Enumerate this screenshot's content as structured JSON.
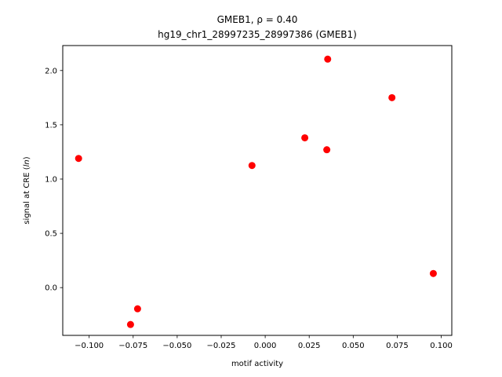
{
  "chart_data": {
    "type": "scatter",
    "title_line1": "GMEB1, ρ = 0.40",
    "title_line2": "hg19_chr1_28997235_28997386 (GMEB1)",
    "xlabel": "motif activity",
    "ylabel_prefix": "signal at CRE (",
    "ylabel_italic": "ln",
    "ylabel_suffix": ")",
    "xlim": [
      -0.115,
      0.106
    ],
    "ylim": [
      -0.44,
      2.23
    ],
    "xticks": [
      -0.1,
      -0.075,
      -0.05,
      -0.025,
      0.0,
      0.025,
      0.05,
      0.075,
      0.1
    ],
    "xtick_labels": [
      "−0.100",
      "−0.075",
      "−0.050",
      "−0.025",
      "0.000",
      "0.025",
      "0.050",
      "0.075",
      "0.100"
    ],
    "yticks": [
      0.0,
      0.5,
      1.0,
      1.5,
      2.0
    ],
    "ytick_labels": [
      "0.0",
      "0.5",
      "1.0",
      "1.5",
      "2.0"
    ],
    "marker_color": "#ff0000",
    "points": [
      {
        "x": -0.106,
        "y": 1.19
      },
      {
        "x": -0.0765,
        "y": -0.34
      },
      {
        "x": -0.0725,
        "y": -0.195
      },
      {
        "x": -0.0075,
        "y": 1.125
      },
      {
        "x": 0.0225,
        "y": 1.38
      },
      {
        "x": 0.035,
        "y": 1.27
      },
      {
        "x": 0.0355,
        "y": 2.105
      },
      {
        "x": 0.072,
        "y": 1.75
      },
      {
        "x": 0.0955,
        "y": 0.13
      }
    ]
  }
}
